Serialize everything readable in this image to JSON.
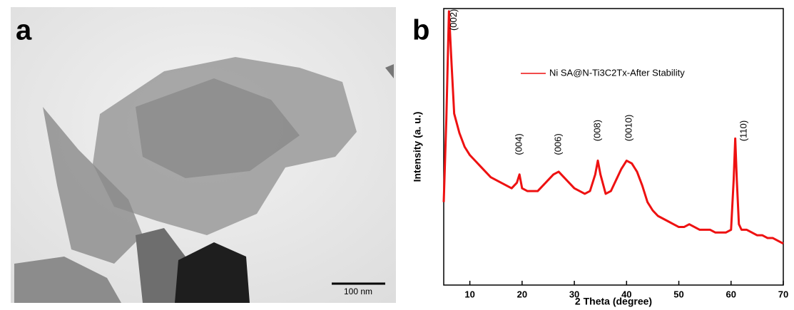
{
  "panels": {
    "a": {
      "label": "a",
      "scale_bar": "100 nm"
    },
    "b": {
      "label": "b"
    }
  },
  "chart_data": {
    "type": "line",
    "xlabel": "2 Theta (degree)",
    "ylabel": "Intensity (a. u.)",
    "xlim": [
      5,
      70
    ],
    "xticks": [
      10,
      20,
      30,
      40,
      50,
      60,
      70
    ],
    "ylim": [
      0,
      100
    ],
    "series": [
      {
        "name": "Ni SA@N-Ti3C2Tx-After Stability",
        "color": "#ee1111",
        "x": [
          5,
          5.5,
          6,
          6.5,
          7,
          8,
          9,
          10,
          11,
          12,
          13,
          14,
          15,
          16,
          17,
          18,
          19,
          19.5,
          20,
          21,
          22,
          23,
          24,
          25,
          26,
          27,
          28,
          29,
          30,
          31,
          32,
          33,
          34,
          34.5,
          35,
          36,
          37,
          38,
          39,
          40,
          41,
          42,
          43,
          44,
          45,
          46,
          47,
          48,
          49,
          50,
          51,
          52,
          53,
          54,
          55,
          56,
          57,
          58,
          59,
          60,
          60.5,
          60.8,
          61.1,
          61.5,
          62,
          63,
          64,
          65,
          66,
          67,
          68,
          69,
          70
        ],
        "values": [
          30,
          60,
          99,
          80,
          62,
          55,
          50,
          47,
          45,
          43,
          41,
          39,
          38,
          37,
          36,
          35,
          37,
          40,
          35,
          34,
          34,
          34,
          36,
          38,
          40,
          41,
          39,
          37,
          35,
          34,
          33,
          34,
          40,
          45,
          40,
          33,
          34,
          38,
          42,
          45,
          44,
          41,
          36,
          30,
          27,
          25,
          24,
          23,
          22,
          21,
          21,
          22,
          21,
          20,
          20,
          20,
          19,
          19,
          19,
          20,
          38,
          53,
          38,
          22,
          20,
          20,
          19,
          18,
          18,
          17,
          17,
          16,
          15
        ]
      }
    ],
    "annotations": [
      {
        "text": "(002)",
        "x": 7,
        "y": 92
      },
      {
        "text": "(004)",
        "x": 19.5,
        "y": 47
      },
      {
        "text": "(006)",
        "x": 27,
        "y": 47
      },
      {
        "text": "(008)",
        "x": 34.5,
        "y": 52
      },
      {
        "text": "(0010)",
        "x": 40.5,
        "y": 52
      },
      {
        "text": "(110)",
        "x": 62.5,
        "y": 52
      }
    ]
  }
}
